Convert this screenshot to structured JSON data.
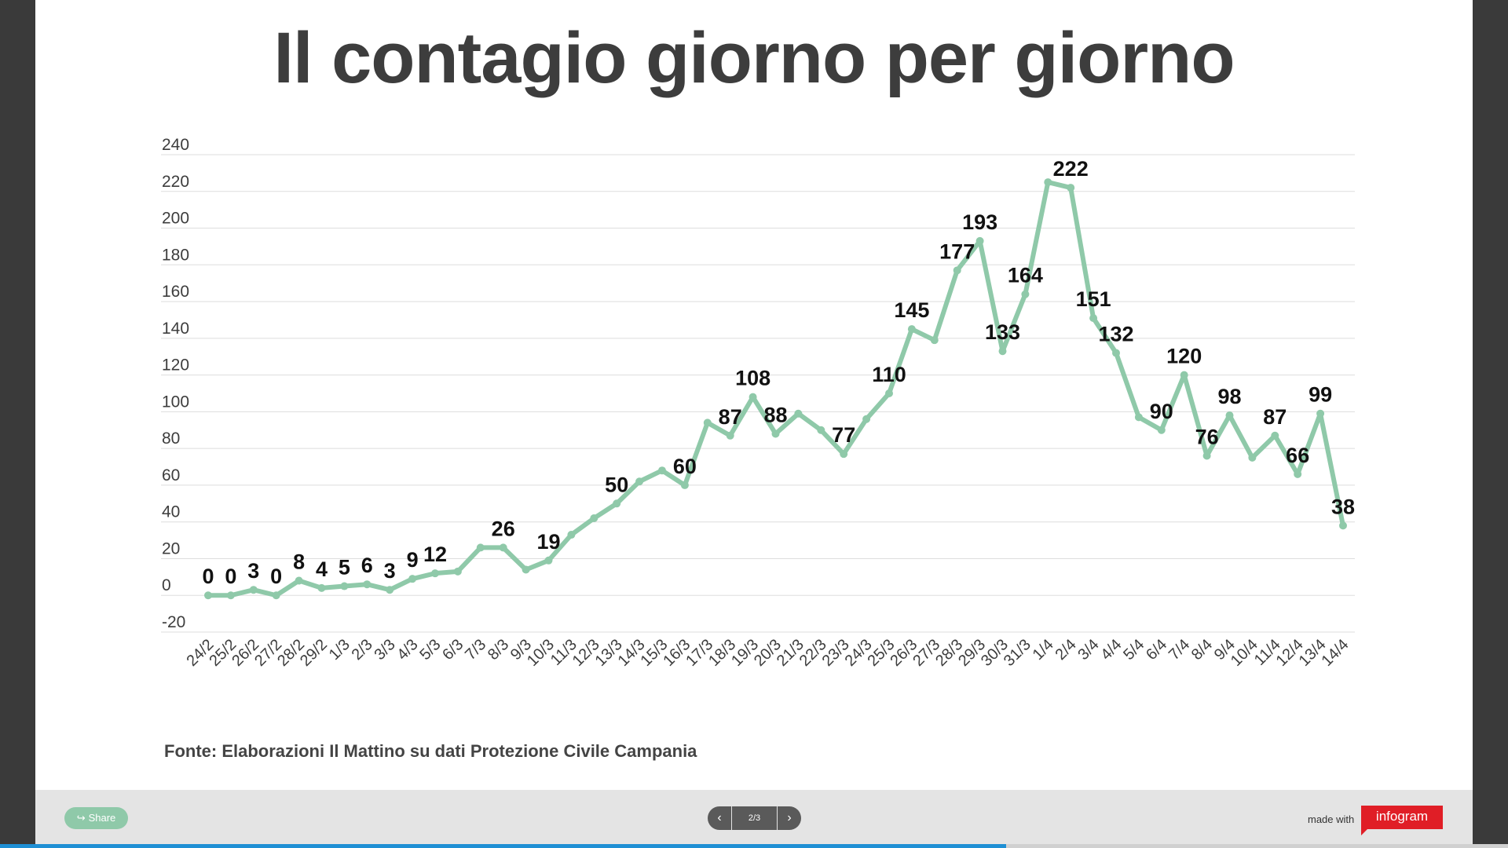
{
  "title": "Il contagio giorno per giorno",
  "source": "Fonte: Elaborazioni Il Mattino su dati Protezione Civile Campania",
  "footer": {
    "share_label": "Share",
    "pager": {
      "prev_icon": "chevron-left-icon",
      "next_icon": "chevron-right-icon",
      "count": "2/3"
    },
    "made_with": "made with",
    "logo_text": "infogram",
    "progress": 0.667
  },
  "colors": {
    "line": "#8fc9a9",
    "grid": "#dddddd",
    "text": "#3d3d3d",
    "labels": "#111111"
  },
  "chart_data": {
    "type": "line",
    "categories": [
      "24/2",
      "25/2",
      "26/2",
      "27/2",
      "28/2",
      "29/2",
      "1/3",
      "2/3",
      "3/3",
      "4/3",
      "5/3",
      "6/3",
      "7/3",
      "8/3",
      "9/3",
      "10/3",
      "11/3",
      "12/3",
      "13/3",
      "14/3",
      "15/3",
      "16/3",
      "17/3",
      "18/3",
      "19/3",
      "20/3",
      "21/3",
      "22/3",
      "23/3",
      "24/3",
      "25/3",
      "26/3",
      "27/3",
      "28/3",
      "29/3",
      "30/3",
      "31/3",
      "1/4",
      "2/4",
      "3/4",
      "4/4",
      "5/4",
      "6/4",
      "7/4",
      "8/4",
      "9/4",
      "10/4",
      "11/4",
      "12/4",
      "13/4",
      "14/4"
    ],
    "values": [
      0,
      0,
      3,
      0,
      8,
      4,
      5,
      6,
      3,
      9,
      12,
      13,
      26,
      26,
      14,
      19,
      33,
      42,
      50,
      62,
      68,
      60,
      94,
      87,
      108,
      88,
      99,
      90,
      77,
      96,
      110,
      145,
      139,
      177,
      193,
      133,
      164,
      225,
      222,
      151,
      132,
      97,
      90,
      120,
      76,
      98,
      75,
      87,
      66,
      99,
      38
    ],
    "labels": [
      "0",
      "0",
      "3",
      "0",
      "8",
      "4",
      "5",
      "6",
      "3",
      "9",
      "12",
      "",
      "",
      "26",
      "",
      "19",
      "",
      "",
      "50",
      "",
      "",
      "60",
      "",
      "87",
      "108",
      "88",
      "",
      "",
      "77",
      "",
      "110",
      "145",
      "",
      "177",
      "193",
      "133",
      "164",
      "",
      "222",
      "151",
      "132",
      "",
      "90",
      "120",
      "76",
      "98",
      "",
      "87",
      "66",
      "99",
      "38"
    ],
    "ylim": [
      -20,
      240
    ],
    "yticks": [
      -20,
      0,
      20,
      40,
      60,
      80,
      100,
      120,
      140,
      160,
      180,
      200,
      220,
      240
    ],
    "grid": true,
    "xlabel": "",
    "ylabel": ""
  }
}
